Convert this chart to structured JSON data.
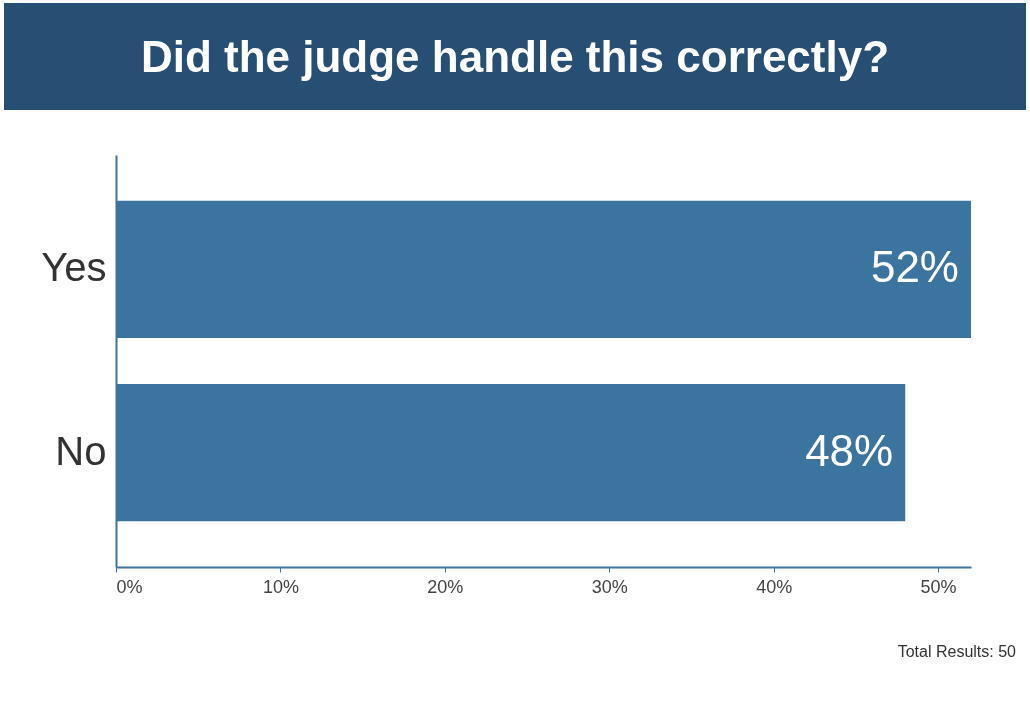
{
  "chart_data": {
    "type": "bar",
    "orientation": "horizontal",
    "title": "Did the judge handle this correctly?",
    "categories": [
      "Yes",
      "No"
    ],
    "values": [
      52,
      48
    ],
    "color": "#3c74a0",
    "value_labels": [
      "52%",
      "48%"
    ],
    "xlim": [
      0,
      52
    ],
    "xticks": [
      {
        "value": 0,
        "label": "0%"
      },
      {
        "value": 10,
        "label": "10%"
      },
      {
        "value": 20,
        "label": "20%"
      },
      {
        "value": 30,
        "label": "30%"
      },
      {
        "value": 40,
        "label": "40%"
      },
      {
        "value": 50,
        "label": "50%"
      }
    ],
    "annotations": [
      "Total Results: 50"
    ]
  }
}
